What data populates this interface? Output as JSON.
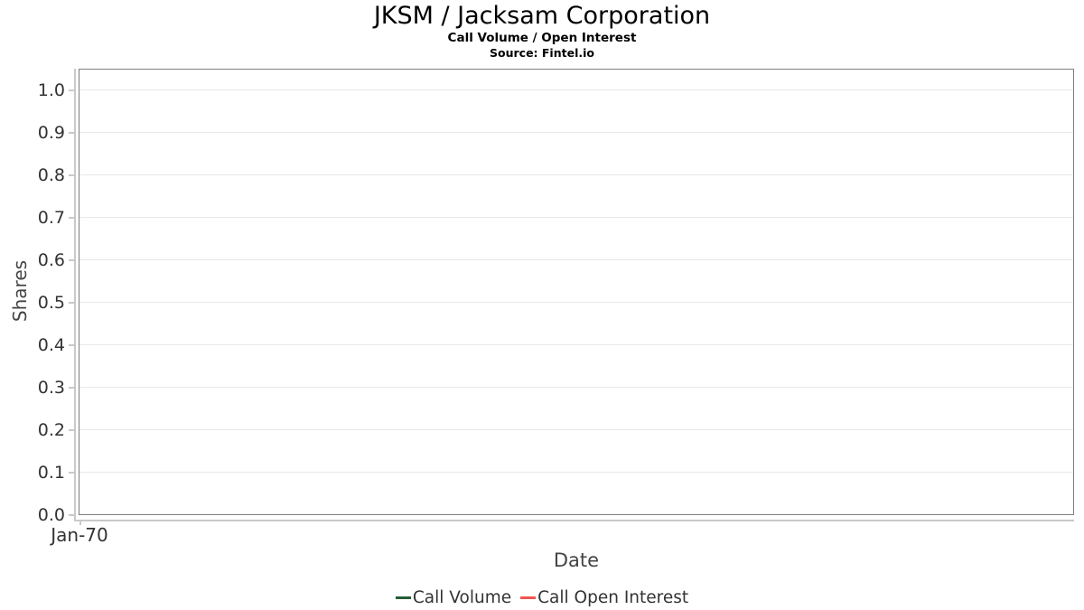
{
  "header": {
    "title": "JKSM / Jacksam Corporation",
    "subtitle": "Call Volume / Open Interest",
    "source": "Source: Fintel.io"
  },
  "axes": {
    "y_label": "Shares",
    "x_label": "Date",
    "y_tick_labels": [
      "1.0",
      "0.9",
      "0.8",
      "0.7",
      "0.6",
      "0.5",
      "0.4",
      "0.3",
      "0.2",
      "0.1",
      "0.0"
    ],
    "x_tick_labels": [
      "Jan-70"
    ]
  },
  "legend": {
    "items": [
      {
        "label": "Call Volume",
        "color": "#255c35"
      },
      {
        "label": "Call Open Interest",
        "color": "#f4534e"
      }
    ]
  },
  "colors": {
    "background": "#ffffff",
    "panel_border": "#7e7e7e",
    "axis_line": "#c9c9c9",
    "gridline": "#e8e8e8",
    "tick_label": "#333333",
    "axis_title": "#444444",
    "legend_text": "#333333",
    "call_volume": "#255c35",
    "call_open_interest": "#f4534e"
  },
  "chart_data": {
    "type": "line",
    "title": "JKSM / Jacksam Corporation",
    "subtitle": "Call Volume / Open Interest",
    "source": "Source: Fintel.io",
    "xlabel": "Date",
    "ylabel": "Shares",
    "ylim": [
      0.0,
      1.0
    ],
    "y_ticks": [
      0.0,
      0.1,
      0.2,
      0.3,
      0.4,
      0.5,
      0.6,
      0.7,
      0.8,
      0.9,
      1.0
    ],
    "x_ticks": [
      "Jan-70"
    ],
    "grid": true,
    "legend_position": "bottom",
    "series": [
      {
        "name": "Call Volume",
        "color": "#255c35",
        "values": []
      },
      {
        "name": "Call Open Interest",
        "color": "#f4534e",
        "values": []
      }
    ]
  }
}
